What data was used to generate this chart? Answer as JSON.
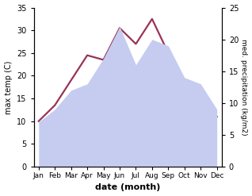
{
  "months": [
    "Jan",
    "Feb",
    "Mar",
    "Apr",
    "May",
    "Jun",
    "Jul",
    "Aug",
    "Sep",
    "Oct",
    "Nov",
    "Dec"
  ],
  "temperature": [
    10,
    13.5,
    19,
    24.5,
    23.5,
    30.5,
    27,
    32.5,
    25,
    17,
    11.5,
    11
  ],
  "precipitation": [
    7,
    9,
    12,
    13,
    17,
    22,
    16,
    20,
    19,
    14,
    13,
    9
  ],
  "temp_color": "#993355",
  "precip_fill_color": "#c5ccf0",
  "xlabel": "date (month)",
  "ylabel_left": "max temp (C)",
  "ylabel_right": "med. precipitation (kg/m2)",
  "ylim_left": [
    0,
    35
  ],
  "ylim_right": [
    0,
    25
  ],
  "yticks_left": [
    0,
    5,
    10,
    15,
    20,
    25,
    30,
    35
  ],
  "yticks_right": [
    0,
    5,
    10,
    15,
    20,
    25
  ],
  "bg_color": "#ffffff",
  "temp_linewidth": 1.6,
  "precip_linewidth": 0
}
